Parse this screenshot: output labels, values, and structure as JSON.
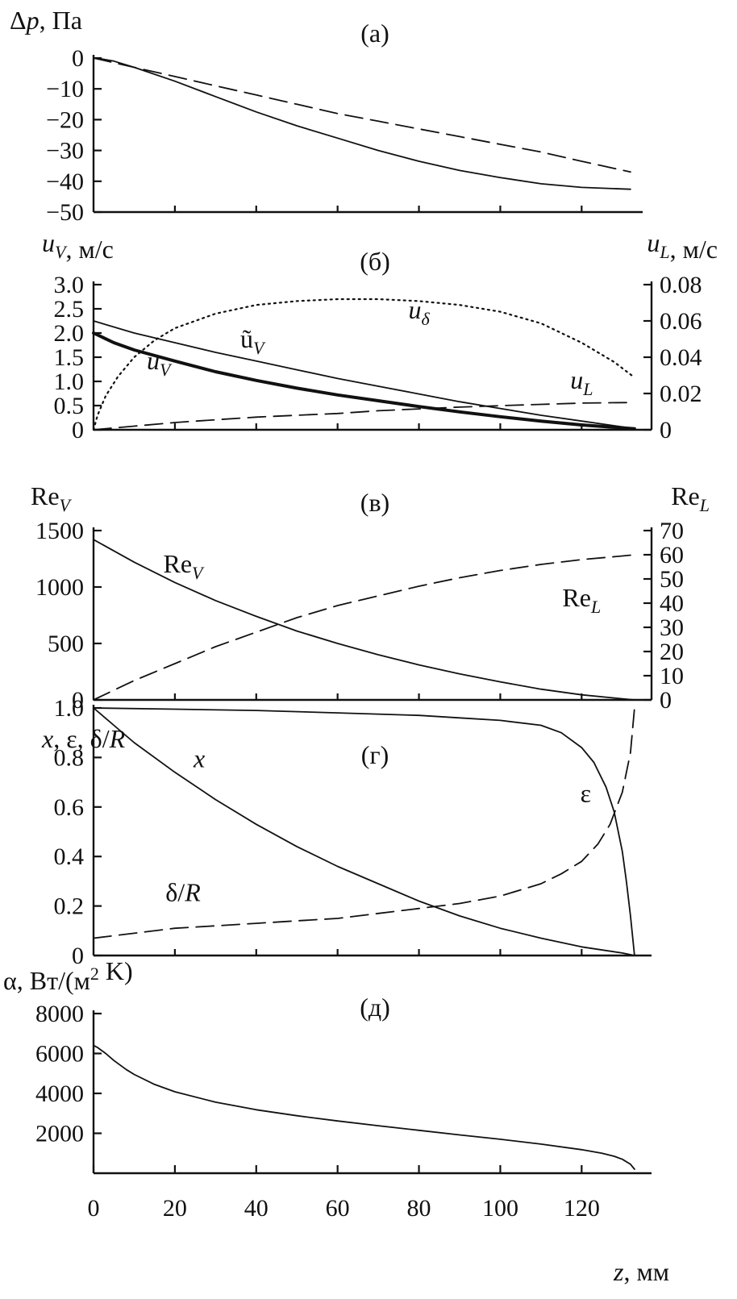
{
  "chart_data": [
    {
      "id": "a",
      "type": "line",
      "title": "(а)",
      "ylabel": "Δp, Па",
      "xlim": [
        0,
        135
      ],
      "ylim": [
        -50,
        0
      ],
      "yticks": [
        0,
        -10,
        -20,
        -30,
        -40,
        -50
      ],
      "ytick_labels": [
        "0",
        "−10",
        "−20",
        "−30",
        "−40",
        "−50"
      ],
      "grid": false,
      "series": [
        {
          "style": "solid",
          "x": [
            0,
            2,
            5,
            10,
            20,
            30,
            40,
            50,
            60,
            70,
            80,
            90,
            100,
            110,
            120,
            130,
            132
          ],
          "y": [
            0,
            -0.3,
            -1,
            -3,
            -7.5,
            -12.5,
            -17.5,
            -22,
            -26,
            -30,
            -33.5,
            -36.5,
            -38.8,
            -40.8,
            -42,
            -42.5,
            -42.6
          ]
        },
        {
          "style": "dashed",
          "x": [
            0,
            10,
            20,
            30,
            40,
            50,
            60,
            70,
            80,
            90,
            100,
            110,
            120,
            132
          ],
          "y": [
            0,
            -3,
            -6,
            -9,
            -12,
            -15,
            -18,
            -20.5,
            -23,
            -25.5,
            -28,
            -30.5,
            -33.5,
            -37
          ]
        }
      ]
    },
    {
      "id": "b",
      "type": "line",
      "title": "(б)",
      "ylabel": "u_V, м/с",
      "ylabel_right": "u_L, м/с",
      "xlim": [
        0,
        135
      ],
      "ylim": [
        0,
        3.0
      ],
      "ylim_right": [
        0,
        0.08
      ],
      "yticks": [
        0,
        0.5,
        1.0,
        1.5,
        2.0,
        2.5,
        3.0
      ],
      "ytick_labels": [
        "0",
        "0.5",
        "1.0",
        "1.5",
        "2.0",
        "2.5",
        "3.0"
      ],
      "yticks_right": [
        0,
        0.02,
        0.04,
        0.06,
        0.08
      ],
      "ytick_labels_right": [
        "0",
        "0.02",
        "0.04",
        "0.06",
        "0.08"
      ],
      "grid": false,
      "annotations": [
        {
          "text": "u_δ",
          "x": 80,
          "y": 2.3
        },
        {
          "text": "ũ_V",
          "x": 39,
          "y": 1.7
        },
        {
          "text": "u_V",
          "x": 16,
          "y": 1.25
        },
        {
          "text": "u_L",
          "x": 120,
          "y": 0.85
        }
      ],
      "series": [
        {
          "name": "ũ_V",
          "style": "solid",
          "axis": "left",
          "x": [
            0,
            10,
            20,
            30,
            40,
            50,
            60,
            70,
            80,
            90,
            100,
            110,
            120,
            130,
            133
          ],
          "y": [
            2.25,
            2.0,
            1.8,
            1.6,
            1.42,
            1.24,
            1.06,
            0.9,
            0.74,
            0.58,
            0.44,
            0.3,
            0.18,
            0.06,
            0.02
          ]
        },
        {
          "name": "u_V",
          "style": "thick",
          "axis": "left",
          "x": [
            0,
            5,
            10,
            20,
            30,
            40,
            50,
            60,
            70,
            80,
            90,
            100,
            110,
            120,
            130,
            133
          ],
          "y": [
            2.0,
            1.8,
            1.65,
            1.42,
            1.2,
            1.02,
            0.86,
            0.72,
            0.6,
            0.48,
            0.37,
            0.27,
            0.18,
            0.1,
            0.04,
            0.02
          ]
        },
        {
          "name": "u_δ",
          "style": "dotted",
          "axis": "left",
          "x": [
            0,
            1,
            3,
            6,
            10,
            15,
            20,
            30,
            40,
            50,
            60,
            70,
            80,
            90,
            100,
            110,
            120,
            128,
            133
          ],
          "y": [
            0,
            0.3,
            0.7,
            1.1,
            1.5,
            1.85,
            2.1,
            2.4,
            2.58,
            2.66,
            2.7,
            2.7,
            2.66,
            2.58,
            2.44,
            2.2,
            1.8,
            1.4,
            1.08
          ]
        },
        {
          "name": "u_L",
          "style": "dashed",
          "axis": "right",
          "x": [
            0,
            10,
            20,
            30,
            40,
            50,
            60,
            70,
            80,
            90,
            100,
            110,
            120,
            130,
            133
          ],
          "y": [
            0,
            0.002,
            0.004,
            0.0055,
            0.007,
            0.008,
            0.009,
            0.0105,
            0.0115,
            0.0125,
            0.0133,
            0.014,
            0.0147,
            0.015,
            0.015
          ]
        }
      ]
    },
    {
      "id": "v",
      "type": "line",
      "title": "(в)",
      "ylabel": "Re_V",
      "ylabel_right": "Re_L",
      "xlim": [
        0,
        135
      ],
      "ylim": [
        0,
        1500
      ],
      "ylim_right": [
        0,
        70
      ],
      "yticks": [
        0,
        500,
        1000,
        1500
      ],
      "ytick_labels": [
        "0",
        "500",
        "1000",
        "1500"
      ],
      "yticks_right": [
        0,
        10,
        20,
        30,
        40,
        50,
        60,
        70
      ],
      "ytick_labels_right": [
        "0",
        "10",
        "20",
        "30",
        "40",
        "50",
        "60",
        "70"
      ],
      "grid": false,
      "annotations": [
        {
          "text": "Re_V",
          "x": 22,
          "y": 1130
        },
        {
          "text": "Re_L",
          "x": 120,
          "y": 830
        }
      ],
      "series": [
        {
          "name": "Re_V",
          "style": "solid",
          "axis": "left",
          "x": [
            0,
            5,
            10,
            20,
            30,
            40,
            50,
            60,
            70,
            80,
            90,
            100,
            110,
            120,
            130,
            133
          ],
          "y": [
            1420,
            1320,
            1220,
            1040,
            880,
            740,
            610,
            500,
            400,
            310,
            230,
            160,
            95,
            45,
            10,
            0
          ]
        },
        {
          "name": "Re_L",
          "style": "dashed",
          "axis": "right",
          "x": [
            0,
            5,
            10,
            20,
            30,
            40,
            50,
            60,
            70,
            80,
            90,
            100,
            110,
            120,
            130,
            133
          ],
          "y": [
            0,
            4,
            8,
            15,
            22,
            28,
            34,
            39,
            43,
            47,
            50.5,
            53.5,
            56,
            58,
            59.5,
            60
          ]
        }
      ]
    },
    {
      "id": "g",
      "type": "line",
      "title": "(г)",
      "ylabel": "x, ε, δ/R",
      "xlim": [
        0,
        135
      ],
      "ylim": [
        0,
        1.0
      ],
      "yticks": [
        0,
        0.2,
        0.4,
        0.6,
        0.8,
        1.0
      ],
      "ytick_labels": [
        "0",
        "0.2",
        "0.4",
        "0.6",
        "0.8",
        "1.0"
      ],
      "grid": false,
      "annotations": [
        {
          "text": "x",
          "x": 26,
          "y": 0.76
        },
        {
          "text": "ε",
          "x": 121,
          "y": 0.62
        },
        {
          "text": "δ/R",
          "x": 22,
          "y": 0.22
        }
      ],
      "series": [
        {
          "name": "x",
          "style": "solid",
          "x": [
            0,
            5,
            10,
            20,
            30,
            40,
            50,
            60,
            70,
            80,
            90,
            100,
            110,
            120,
            130,
            133
          ],
          "y": [
            1.0,
            0.93,
            0.86,
            0.74,
            0.63,
            0.53,
            0.44,
            0.36,
            0.29,
            0.22,
            0.16,
            0.11,
            0.07,
            0.035,
            0.01,
            0
          ]
        },
        {
          "name": "ε",
          "style": "solid",
          "x": [
            0,
            20,
            40,
            60,
            80,
            90,
            100,
            110,
            115,
            120,
            123,
            126,
            128,
            130,
            131,
            132,
            133
          ],
          "y": [
            1.0,
            0.995,
            0.99,
            0.98,
            0.97,
            0.96,
            0.95,
            0.93,
            0.9,
            0.84,
            0.78,
            0.68,
            0.58,
            0.42,
            0.3,
            0.16,
            0
          ]
        },
        {
          "name": "δ/R",
          "style": "dashed",
          "x": [
            0,
            10,
            20,
            30,
            40,
            50,
            60,
            70,
            80,
            90,
            100,
            110,
            115,
            120,
            124,
            127,
            130,
            132,
            133
          ],
          "y": [
            0.07,
            0.09,
            0.11,
            0.12,
            0.13,
            0.14,
            0.15,
            0.17,
            0.19,
            0.21,
            0.24,
            0.29,
            0.33,
            0.38,
            0.45,
            0.53,
            0.66,
            0.82,
            1.0
          ]
        }
      ]
    },
    {
      "id": "d",
      "type": "line",
      "title": "(д)",
      "ylabel": "α, Вт/(м² K)",
      "xlabel": "z, мм",
      "xlim": [
        0,
        135
      ],
      "ylim": [
        0,
        8000
      ],
      "yticks": [
        2000,
        4000,
        6000,
        8000
      ],
      "ytick_labels": [
        "2000",
        "4000",
        "6000",
        "8000"
      ],
      "xticks": [
        0,
        20,
        40,
        60,
        80,
        100,
        120
      ],
      "xtick_labels": [
        "0",
        "20",
        "40",
        "60",
        "80",
        "100",
        "120"
      ],
      "grid": false,
      "series": [
        {
          "style": "solid",
          "x": [
            0,
            1,
            3,
            5,
            8,
            10,
            15,
            20,
            30,
            40,
            50,
            60,
            70,
            80,
            90,
            100,
            110,
            120,
            125,
            128,
            130,
            132,
            133
          ],
          "y": [
            6400,
            6300,
            6000,
            5650,
            5200,
            4950,
            4450,
            4080,
            3560,
            3180,
            2880,
            2620,
            2380,
            2150,
            1920,
            1700,
            1460,
            1180,
            1000,
            850,
            700,
            450,
            200
          ]
        }
      ]
    }
  ]
}
